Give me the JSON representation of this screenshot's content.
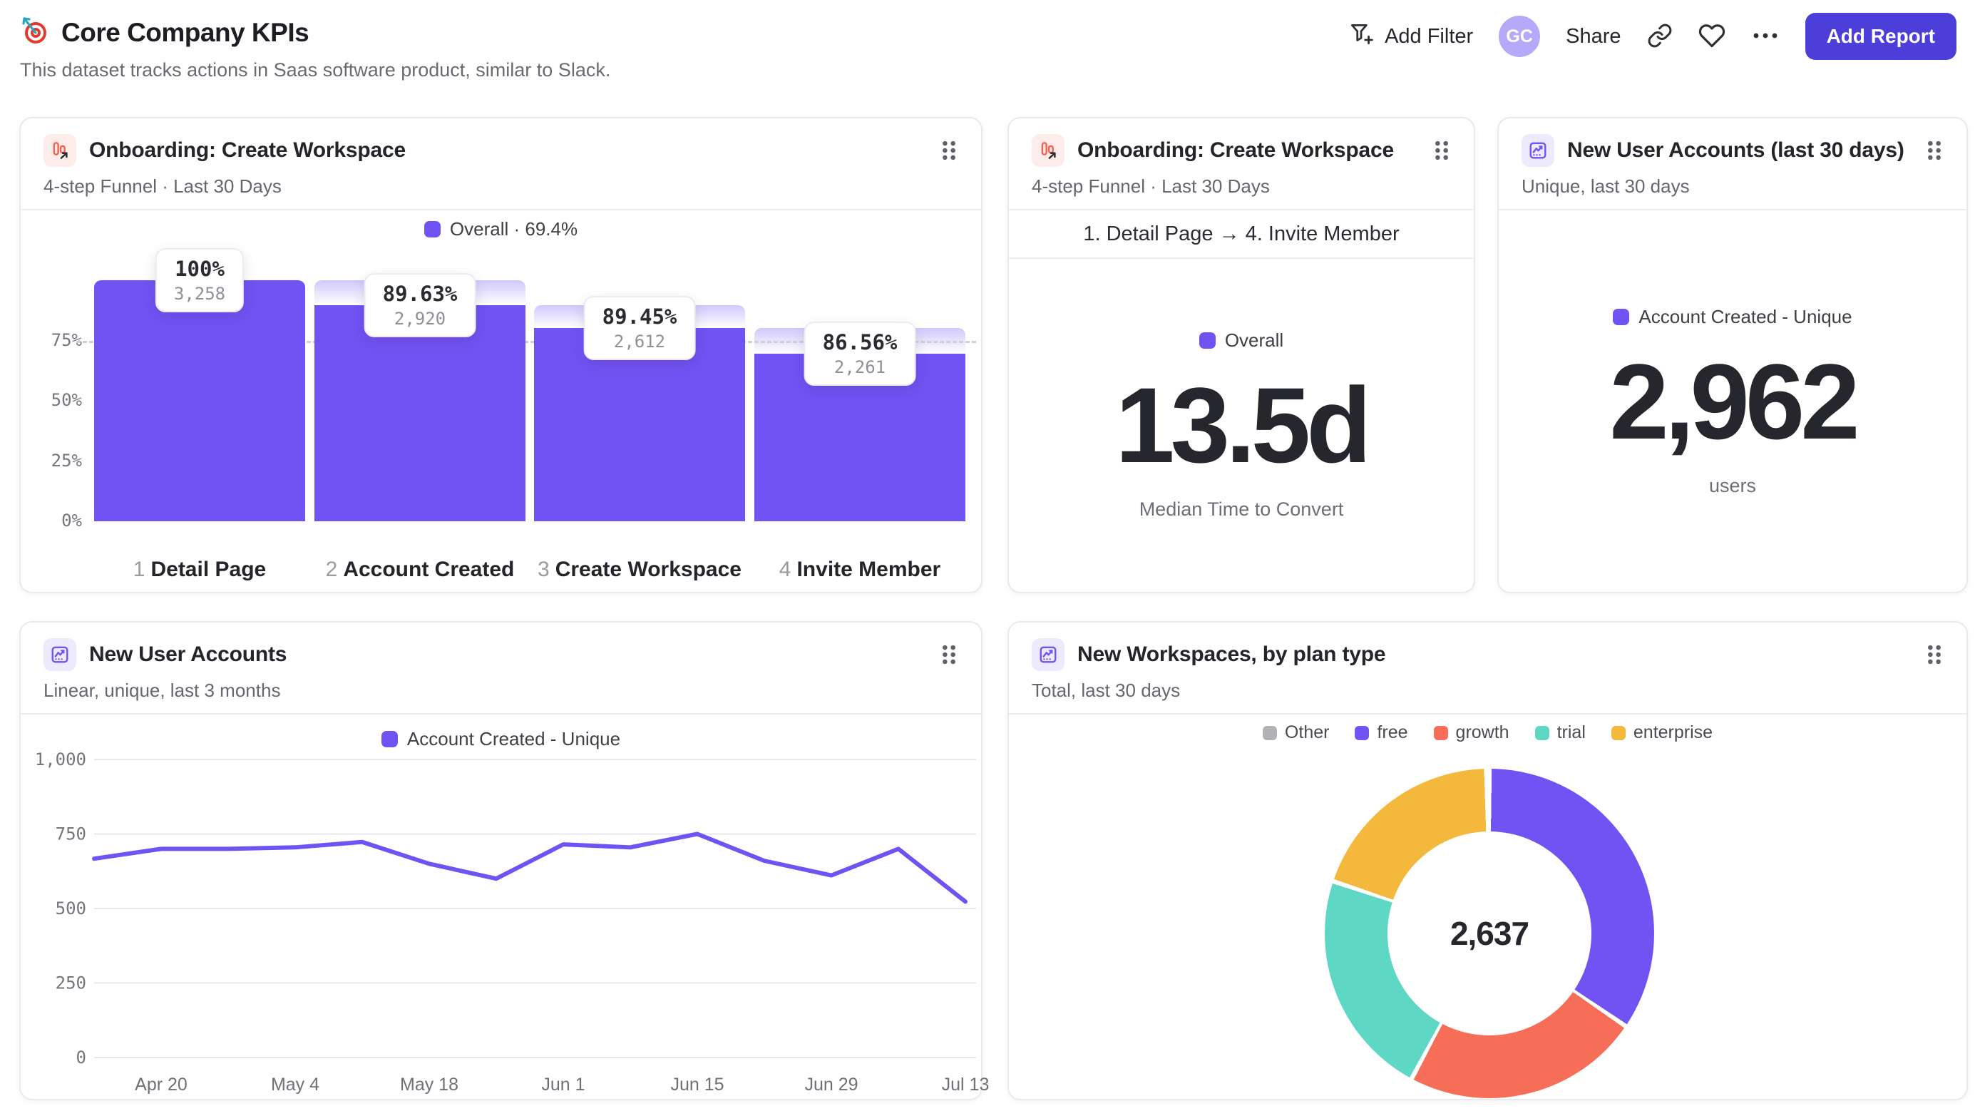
{
  "header": {
    "title": "Core Company KPIs",
    "subtitle": "This dataset tracks actions in Saas software product, similar to Slack.",
    "add_filter_label": "Add Filter",
    "avatar_initials": "GC",
    "share_label": "Share",
    "add_report_label": "Add Report"
  },
  "cards": {
    "funnel": {
      "title": "Onboarding: Create Workspace",
      "subtitle": "4-step Funnel · Last 30 Days"
    },
    "time_to_convert": {
      "title": "Onboarding: Create Workspace",
      "subtitle": "4-step Funnel · Last 30 Days",
      "range_label": "1. Detail Page → 4. Invite Member"
    },
    "new_accounts_30d": {
      "title": "New User Accounts (last 30 days)",
      "subtitle": "Unique, last 30 days"
    },
    "accounts_trend": {
      "title": "New User Accounts",
      "subtitle": "Linear, unique, last 3 months"
    },
    "workspaces_by_plan": {
      "title": "New Workspaces, by plan type",
      "subtitle": "Total, last 30 days"
    }
  },
  "colors": {
    "purple": "#7152f3",
    "indigo_button": "#4b3ed9",
    "coral": "#f66e58",
    "teal": "#5ed8c4",
    "amber": "#f4b83d",
    "gray": "#b1b1b6",
    "funnel_icon_red": "#f0614e"
  },
  "chart_data": [
    {
      "type": "bar",
      "subtype": "funnel",
      "title": "Onboarding: Create Workspace",
      "legend": "Overall · 69.4%",
      "overall_pct": 69.4,
      "dashed_line_pct": 75,
      "yticks": [
        "75%",
        "50%",
        "25%",
        "0%"
      ],
      "ytick_values": [
        75,
        50,
        25,
        0
      ],
      "steps": [
        {
          "index": "1",
          "name": "Detail Page",
          "count": 3258,
          "count_label": "3,258",
          "pct_label": "100%",
          "pct_of_first": 100
        },
        {
          "index": "2",
          "name": "Account Created",
          "count": 2920,
          "count_label": "2,920",
          "pct_label": "89.63%",
          "pct_of_first": 89.63
        },
        {
          "index": "3",
          "name": "Create Workspace",
          "count": 2612,
          "count_label": "2,612",
          "pct_label": "89.45%",
          "pct_of_first": 80.17
        },
        {
          "index": "4",
          "name": "Invite Member",
          "count": 2261,
          "count_label": "2,261",
          "pct_label": "86.56%",
          "pct_of_first": 69.4
        }
      ]
    },
    {
      "type": "metric",
      "series": "Overall",
      "value": "13.5d",
      "label": "Median Time to Convert"
    },
    {
      "type": "metric",
      "series": "Account Created - Unique",
      "value": "2,962",
      "label": "users"
    },
    {
      "type": "line",
      "title": "New User Accounts",
      "ylim": [
        0,
        1000
      ],
      "yticks": [
        1000,
        750,
        500,
        250,
        0
      ],
      "ytick_labels": [
        "1,000",
        "750",
        "500",
        "250",
        "0"
      ],
      "x": [
        "Apr 13",
        "Apr 20",
        "Apr 27",
        "May 4",
        "May 11",
        "May 18",
        "May 25",
        "Jun 1",
        "Jun 8",
        "Jun 15",
        "Jun 22",
        "Jun 29",
        "Jul 6",
        "Jul 13"
      ],
      "xticks": [
        "Apr 20",
        "May 4",
        "May 18",
        "Jun 1",
        "Jun 15",
        "Jun 29",
        "Jul 13"
      ],
      "series": [
        {
          "name": "Account Created - Unique",
          "color": "#7152f3",
          "values": [
            667,
            700,
            700,
            705,
            723,
            650,
            600,
            715,
            705,
            750,
            660,
            611,
            700,
            523
          ]
        }
      ]
    },
    {
      "type": "pie",
      "subtype": "donut",
      "title": "New Workspaces, by plan type",
      "total": 2637,
      "total_label": "2,637",
      "legend_order": [
        "Other",
        "free",
        "growth",
        "trial",
        "enterprise"
      ],
      "slices": [
        {
          "name": "free",
          "value": 910,
          "color": "#7152f3"
        },
        {
          "name": "growth",
          "value": 615,
          "color": "#f66e58"
        },
        {
          "name": "trial",
          "value": 588,
          "color": "#5ed8c4"
        },
        {
          "name": "enterprise",
          "value": 516,
          "color": "#f4b83d"
        },
        {
          "name": "Other",
          "value": 8,
          "color": "#b1b1b6"
        }
      ]
    }
  ]
}
